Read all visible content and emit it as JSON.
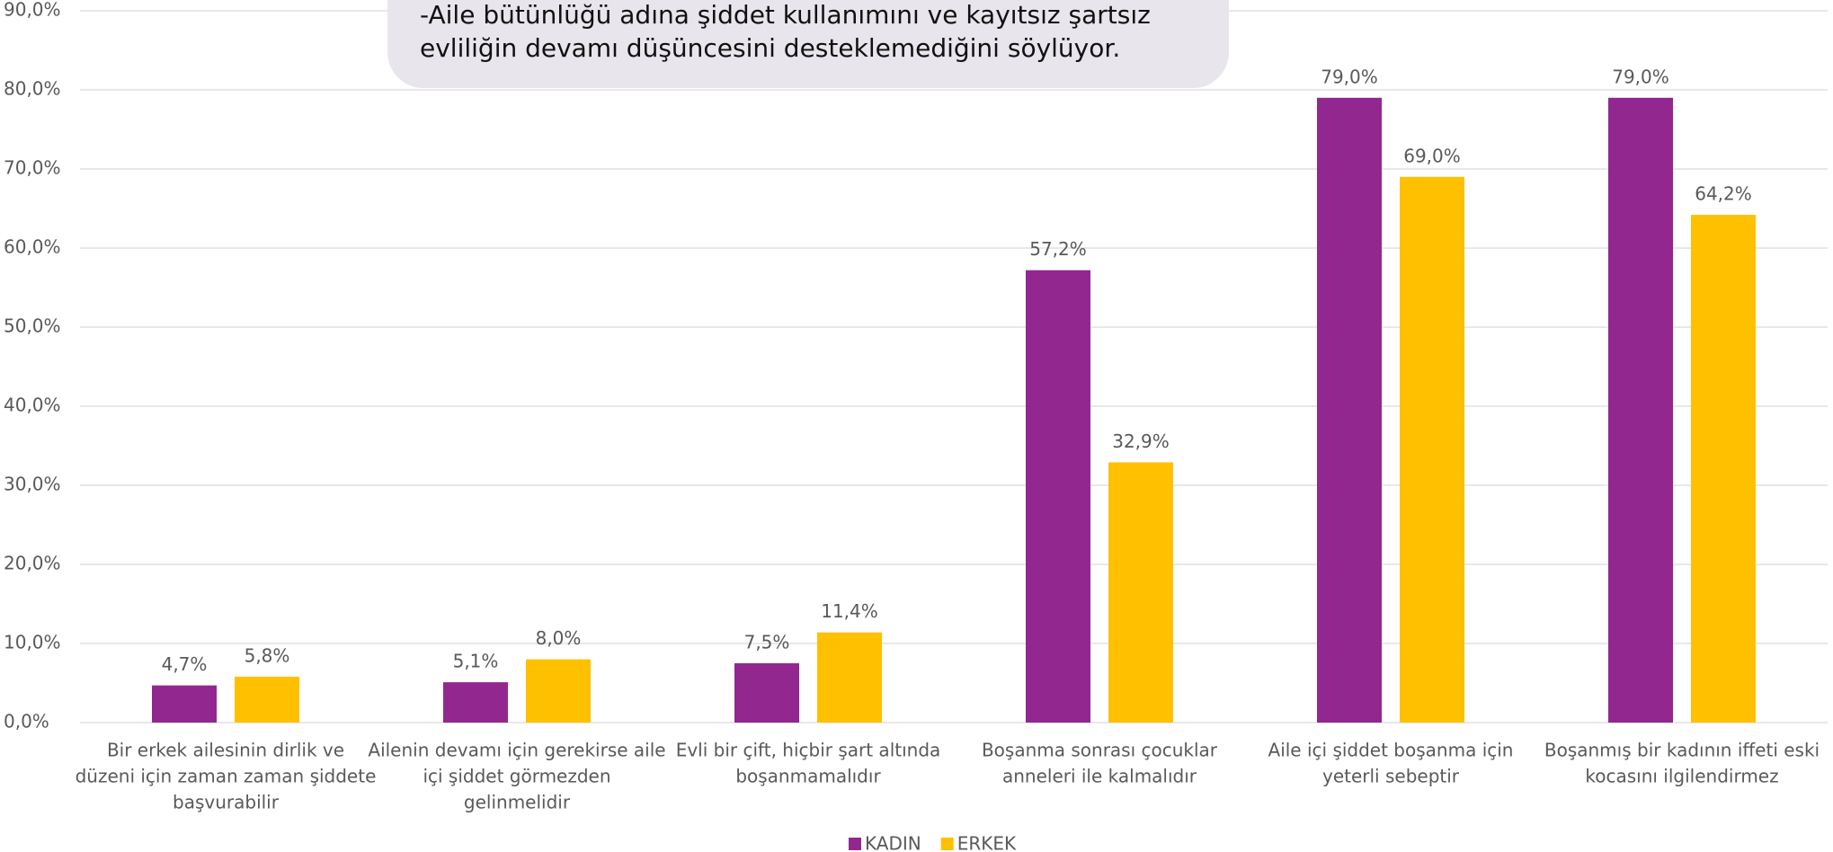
{
  "chart_data": {
    "type": "bar",
    "annotation": [
      "-Aile bütünlüğü adına şiddet kullanımını ve kayıtsız şartsız",
      "evliliğin devamı düşüncesini  desteklemediğini söylüyor."
    ],
    "categories": [
      [
        "Bir erkek ailesinin dirlik ve",
        "düzeni için zaman zaman şiddete",
        "başvurabilir"
      ],
      [
        "Ailenin devamı için gerekirse aile",
        "içi şiddet görmezden",
        "gelinmelidir"
      ],
      [
        "Evli bir çift, hiçbir şart altında",
        "boşanmamalıdır"
      ],
      [
        "Boşanma sonrası çocuklar",
        "anneleri ile kalmalıdır"
      ],
      [
        "Aile içi şiddet boşanma için",
        "yeterli sebeptir"
      ],
      [
        "Boşanmış bir kadının iffeti eski",
        "kocasını ilgilendirmez"
      ]
    ],
    "series": [
      {
        "name": "KADIN",
        "color": "#92278f",
        "values": [
          4.7,
          5.1,
          7.5,
          57.2,
          79.0,
          79.0
        ],
        "value_labels": [
          "4,7%",
          "5,1%",
          "7,5%",
          "57,2%",
          "79,0%",
          "79,0%"
        ]
      },
      {
        "name": "ERKEK",
        "color": "#ffc000",
        "values": [
          5.8,
          8.0,
          11.4,
          32.9,
          69.0,
          64.2
        ],
        "value_labels": [
          "5,8%",
          "8,0%",
          "11,4%",
          "32,9%",
          "69,0%",
          "64,2%"
        ]
      }
    ],
    "ylim": [
      0,
      90
    ],
    "yticks": [
      {
        "value": 0,
        "label": "0,0%"
      },
      {
        "value": 10,
        "label": "10,0%"
      },
      {
        "value": 20,
        "label": "20,0%"
      },
      {
        "value": 30,
        "label": "30,0%"
      },
      {
        "value": 40,
        "label": "40,0%"
      },
      {
        "value": 50,
        "label": "50,0%"
      },
      {
        "value": 60,
        "label": "60,0%"
      },
      {
        "value": 70,
        "label": "70,0%"
      },
      {
        "value": 80,
        "label": "80,0%"
      },
      {
        "value": 90,
        "label": "90,0%"
      }
    ],
    "grid": true,
    "legend": "bottom"
  }
}
